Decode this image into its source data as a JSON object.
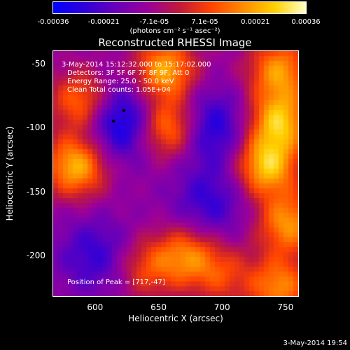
{
  "colorbar": {
    "tick_labels": [
      "-0.00036",
      "-0.00021",
      "-7.1e-05",
      "7.1e-05",
      "0.00021",
      "0.00036"
    ],
    "units": "(photons cm⁻² s⁻¹ asec⁻²)",
    "colors": [
      "#0000ff",
      "#3000d8",
      "#6a00b8",
      "#9a009a",
      "#c01a3a",
      "#ff4400",
      "#ff8a00",
      "#ffd000",
      "#ffffc8"
    ]
  },
  "plot": {
    "title": "Reconstructed RHESSI Image",
    "info_lines": [
      "3-May-2014 15:12:32.000 to 15:17:02.000",
      "Detectors: 3F 5F 6F 7F 8F 9F, Att 0",
      "Energy Range: 25.0 - 50.0 keV",
      "Clean    Total counts: 1.05E+04"
    ],
    "peak_text": "Position of Peak = [717,-47]",
    "footer_date": "3-May-2014 19:54"
  },
  "chart_data": {
    "type": "heatmap",
    "title": "Reconstructed RHESSI Image",
    "xlabel": "Heliocentric X (arcsec)",
    "ylabel": "Heliocentric Y (arcsec)",
    "xlim": [
      567,
      760
    ],
    "ylim": [
      -232,
      -40
    ],
    "x_ticks": [
      "600",
      "650",
      "700",
      "750"
    ],
    "y_ticks": [
      "-50",
      "-100",
      "-150",
      "-200"
    ],
    "colorbar_range": [
      -0.00036,
      0.00036
    ],
    "sources": [
      {
        "x": 585,
        "y": -130,
        "level": 0.95
      },
      {
        "x": 590,
        "y": -80,
        "level": 0.75
      },
      {
        "x": 655,
        "y": -55,
        "level": 0.9
      },
      {
        "x": 658,
        "y": -100,
        "level": 0.9
      },
      {
        "x": 745,
        "y": -55,
        "level": 0.8
      },
      {
        "x": 745,
        "y": -95,
        "level": 0.95
      },
      {
        "x": 735,
        "y": -130,
        "level": 1.0
      },
      {
        "x": 752,
        "y": -175,
        "level": 0.8
      },
      {
        "x": 745,
        "y": -225,
        "level": 0.75
      },
      {
        "x": 672,
        "y": -200,
        "level": 0.7
      },
      {
        "x": 640,
        "y": -210,
        "level": 0.5
      },
      {
        "x": 700,
        "y": -215,
        "level": 0.45
      }
    ],
    "negative_regions": [
      {
        "x": 620,
        "y": -95,
        "level": -0.75
      },
      {
        "x": 690,
        "y": -100,
        "level": -0.6
      },
      {
        "x": 690,
        "y": -160,
        "level": -0.45
      },
      {
        "x": 600,
        "y": -200,
        "level": -0.45
      }
    ],
    "peak_position": [
      717,
      -47
    ]
  }
}
